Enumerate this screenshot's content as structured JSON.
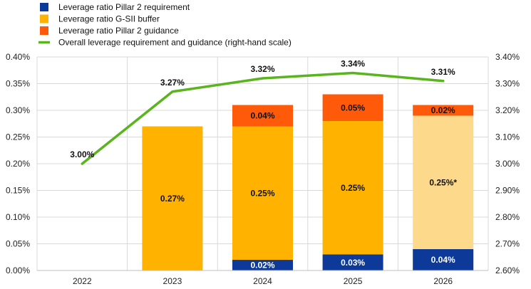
{
  "chart_data": {
    "type": "bar",
    "stacked": true,
    "categories": [
      "2022",
      "2023",
      "2024",
      "2025",
      "2026"
    ],
    "series": [
      {
        "name": "Leverage  ratio Pillar 2 requirement",
        "color": "#0d3a99",
        "values": [
          0,
          0,
          0.02,
          0.03,
          0.04
        ],
        "labels": [
          "",
          "",
          "0.02%",
          "0.03%",
          "0.04%"
        ]
      },
      {
        "name": "Leverage  ratio G-SII buffer",
        "color": "#ffb300",
        "values": [
          0,
          0.27,
          0.25,
          0.25,
          0.25
        ],
        "labels": [
          "",
          "0.27%",
          "0.25%",
          "0.25%",
          "0.25%*"
        ],
        "highlight": {
          "index": 4,
          "color": "#fdd98c"
        }
      },
      {
        "name": "Leverage  ratio Pillar 2 guidance",
        "color": "#ff5a0a",
        "values": [
          0,
          0,
          0.04,
          0.05,
          0.02
        ],
        "labels": [
          "",
          "",
          "0.04%",
          "0.05%",
          "0.02%"
        ]
      }
    ],
    "line": {
      "name": "Overall leverage requirement and guidance (right-hand scale)",
      "color": "#5ab41e",
      "axis": "right",
      "values": [
        3.0,
        3.27,
        3.32,
        3.34,
        3.31
      ],
      "labels": [
        "3.00%",
        "3.27%",
        "3.32%",
        "3.34%",
        "3.31%"
      ]
    },
    "y_left": {
      "ylim": [
        0,
        0.4
      ],
      "ticks": [
        "0.00%",
        "0.05%",
        "0.10%",
        "0.15%",
        "0.20%",
        "0.25%",
        "0.30%",
        "0.35%",
        "0.40%"
      ]
    },
    "y_right": {
      "ylim": [
        2.6,
        3.4
      ],
      "ticks": [
        "2.60%",
        "2.70%",
        "2.80%",
        "2.90%",
        "3.00%",
        "3.10%",
        "3.20%",
        "3.30%",
        "3.40%"
      ]
    },
    "grid": true,
    "legend": "top-left"
  }
}
